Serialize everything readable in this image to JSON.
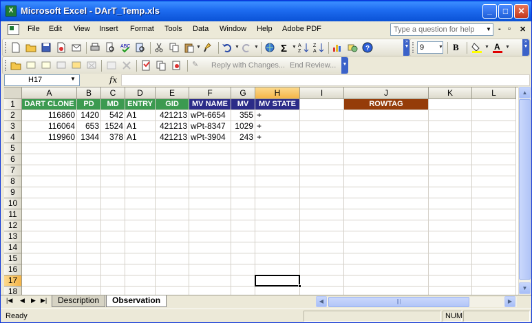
{
  "window": {
    "title": "Microsoft Excel - DArT_Temp.xls",
    "app_icon": "excel-icon"
  },
  "menu": {
    "items": [
      "File",
      "Edit",
      "View",
      "Insert",
      "Format",
      "Tools",
      "Data",
      "Window",
      "Help",
      "Adobe PDF"
    ],
    "ask_placeholder": "Type a question for help"
  },
  "toolbar": {
    "font_size": "9",
    "reviewing": {
      "reply_label": "Reply with Changes...",
      "end_review_label": "End Review..."
    }
  },
  "formula_bar": {
    "name_box": "H17",
    "fx_label": "fx",
    "formula": ""
  },
  "grid": {
    "columns": [
      "A",
      "B",
      "C",
      "D",
      "E",
      "F",
      "G",
      "H",
      "I",
      "J",
      "K",
      "L"
    ],
    "active_column": "H",
    "rows": [
      "1",
      "2",
      "3",
      "4",
      "5",
      "6",
      "7",
      "8",
      "9",
      "10",
      "11",
      "12",
      "13",
      "14",
      "15",
      "16",
      "17",
      "18"
    ],
    "active_row": "17",
    "headers": [
      {
        "text": "DART CLONE",
        "color": "#3c9a50"
      },
      {
        "text": "PD",
        "color": "#3c9a50"
      },
      {
        "text": "MD",
        "color": "#3c9a50"
      },
      {
        "text": "ENTRY",
        "color": "#3c9a50"
      },
      {
        "text": "GID",
        "color": "#3c9a50"
      },
      {
        "text": "MV NAME",
        "color": "#2b2b88"
      },
      {
        "text": "MV",
        "color": "#2b2b88"
      },
      {
        "text": "MV STATE",
        "color": "#2b2b88"
      },
      {
        "text": "",
        "color": ""
      },
      {
        "text": "ROWTAG",
        "color": "#953c09"
      }
    ],
    "data_rows": [
      [
        "116860",
        "1420",
        "542",
        "A1",
        "421213",
        "wPt-6654",
        "355",
        "+"
      ],
      [
        "116064",
        "653",
        "1524",
        "A1",
        "421213",
        "wPt-8347",
        "1029",
        "+"
      ],
      [
        "119960",
        "1344",
        "378",
        "A1",
        "421213",
        "wPt-3904",
        "243",
        "+"
      ]
    ]
  },
  "sheets": {
    "tabs": [
      "Description",
      "Observation"
    ],
    "active": "Observation"
  },
  "status": {
    "text": "Ready",
    "num_indicator": "NUM"
  }
}
